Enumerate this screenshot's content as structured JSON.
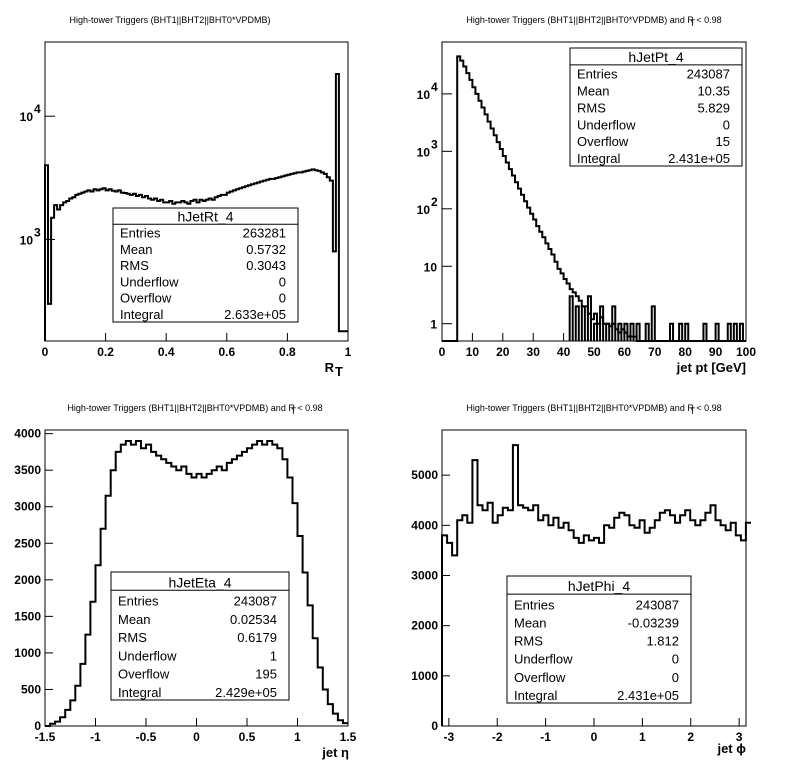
{
  "charts": [
    {
      "id": "rt",
      "title": "High-tower Triggers (BHT1||BHT2||BHT0*VPDMB)",
      "xlabel_main": "R",
      "xlabel_sub": "T",
      "stats": {
        "name": "hJetRt_4",
        "rows": [
          {
            "label": "Entries",
            "value": "263281"
          },
          {
            "label": "Mean",
            "value": "0.5732"
          },
          {
            "label": "RMS",
            "value": "0.3043"
          },
          {
            "label": "Underflow",
            "value": "0"
          },
          {
            "label": "Overflow",
            "value": "0"
          },
          {
            "label": "Integral",
            "value": "2.633e+05"
          }
        ]
      },
      "x_ticks": [
        "0",
        "0.2",
        "0.4",
        "0.6",
        "0.8",
        "1"
      ],
      "y_ticks": [
        {
          "base": "10",
          "exp": "3",
          "value": 1000
        },
        {
          "base": "10",
          "exp": "4",
          "value": 10000
        }
      ]
    },
    {
      "id": "pt",
      "title": "High-tower Triggers (BHT1||BHT2||BHT0*VPDMB) and R  < 0.98",
      "title_sub": "T",
      "xlabel_main": "jet pt [GeV]",
      "stats": {
        "name": "hJetPt_4",
        "rows": [
          {
            "label": "Entries",
            "value": "243087"
          },
          {
            "label": "Mean",
            "value": "10.35"
          },
          {
            "label": "RMS",
            "value": "5.829"
          },
          {
            "label": "Underflow",
            "value": "0"
          },
          {
            "label": "Overflow",
            "value": "15"
          },
          {
            "label": "Integral",
            "value": "2.431e+05"
          }
        ]
      },
      "x_ticks": [
        "0",
        "10",
        "20",
        "30",
        "40",
        "50",
        "60",
        "70",
        "80",
        "90",
        "100"
      ],
      "y_ticks": [
        {
          "base": "1",
          "exp": "",
          "value": 1
        },
        {
          "base": "10",
          "exp": "",
          "value": 10
        },
        {
          "base": "10",
          "exp": "2",
          "value": 100
        },
        {
          "base": "10",
          "exp": "3",
          "value": 1000
        },
        {
          "base": "10",
          "exp": "4",
          "value": 10000
        }
      ]
    },
    {
      "id": "eta",
      "title": "High-tower Triggers (BHT1||BHT2||BHT0*VPDMB) and R  < 0.98",
      "title_sub": "T",
      "xlabel_main": "jet η",
      "stats": {
        "name": "hJetEta_4",
        "rows": [
          {
            "label": "Entries",
            "value": "243087"
          },
          {
            "label": "Mean",
            "value": "0.02534"
          },
          {
            "label": "RMS",
            "value": "0.6179"
          },
          {
            "label": "Underflow",
            "value": "1"
          },
          {
            "label": "Overflow",
            "value": "195"
          },
          {
            "label": "Integral",
            "value": "2.429e+05"
          }
        ]
      },
      "x_ticks": [
        "-1.5",
        "-1",
        "-0.5",
        "0",
        "0.5",
        "1",
        "1.5"
      ],
      "y_ticks": [
        "0",
        "500",
        "1000",
        "1500",
        "2000",
        "2500",
        "3000",
        "3500",
        "4000"
      ]
    },
    {
      "id": "phi",
      "title": "High-tower Triggers (BHT1||BHT2||BHT0*VPDMB) and R  < 0.98",
      "title_sub": "T",
      "xlabel_main": "jet ϕ",
      "stats": {
        "name": "hJetPhi_4",
        "rows": [
          {
            "label": "Entries",
            "value": "243087"
          },
          {
            "label": "Mean",
            "value": "-0.03239"
          },
          {
            "label": "RMS",
            "value": "1.812"
          },
          {
            "label": "Underflow",
            "value": "0"
          },
          {
            "label": "Overflow",
            "value": "0"
          },
          {
            "label": "Integral",
            "value": "2.431e+05"
          }
        ]
      },
      "x_ticks": [
        "-3",
        "-2",
        "-1",
        "0",
        "1",
        "2",
        "3"
      ],
      "y_ticks": [
        "0",
        "1000",
        "2000",
        "3000",
        "4000",
        "5000"
      ]
    }
  ],
  "chart_data": [
    {
      "type": "bar",
      "style": "step-histogram",
      "name": "hJetRt_4",
      "xlim": [
        0,
        1
      ],
      "ylim": [
        150,
        40000
      ],
      "log_y": true,
      "bin_edges_start": 0,
      "bin_width": 0.01,
      "values": [
        4000,
        300,
        1500,
        1900,
        1750,
        1900,
        2000,
        2050,
        2150,
        2200,
        2300,
        2350,
        2400,
        2450,
        2500,
        2450,
        2550,
        2500,
        2550,
        2600,
        2500,
        2550,
        2480,
        2450,
        2500,
        2400,
        2380,
        2350,
        2300,
        2350,
        2250,
        2300,
        2200,
        2250,
        2150,
        2100,
        2150,
        2050,
        2100,
        2000,
        2000,
        2050,
        1950,
        2000,
        2000,
        2050,
        2000,
        1950,
        2050,
        2100,
        2000,
        2100,
        2050,
        2100,
        2150,
        2100,
        2200,
        2250,
        2300,
        2300,
        2400,
        2450,
        2500,
        2550,
        2600,
        2650,
        2700,
        2750,
        2800,
        2850,
        2900,
        2950,
        3000,
        3050,
        3100,
        3100,
        3150,
        3200,
        3250,
        3300,
        3350,
        3400,
        3450,
        3500,
        3500,
        3550,
        3600,
        3650,
        3700,
        3650,
        3600,
        3500,
        3400,
        3200,
        3000,
        800,
        22000,
        180,
        180,
        180
      ]
    },
    {
      "type": "bar",
      "style": "step-histogram",
      "name": "hJetPt_4",
      "xlim": [
        0,
        100
      ],
      "ylim": [
        0.5,
        80000
      ],
      "log_y": true,
      "bin_edges_start": 0,
      "bin_width": 1,
      "values": [
        0,
        0,
        0,
        0,
        0,
        45000,
        38000,
        30000,
        23000,
        17500,
        13000,
        10000,
        7600,
        5800,
        4400,
        3300,
        2500,
        1900,
        1450,
        1100,
        830,
        640,
        490,
        380,
        290,
        225,
        175,
        135,
        105,
        82,
        65,
        50,
        40,
        32,
        25,
        20,
        16,
        12,
        9,
        7.5,
        6,
        5,
        4,
        3.5,
        3,
        2.5,
        2,
        2,
        1.5,
        1.2,
        1.5,
        1,
        1.3,
        1,
        1,
        0.9,
        1,
        0.8,
        0.7,
        0.8,
        0.7,
        0.6,
        0.6,
        0.6,
        0.5,
        0.5,
        0.5,
        0.5,
        0.5,
        0.5,
        0.5,
        0.5,
        0.5,
        0.5,
        0.5,
        0.5,
        0.5,
        0.5,
        0.5,
        0.5,
        0.5,
        0.5,
        0.5,
        0.5,
        0.5,
        0.5,
        0.5,
        0.5,
        0.5,
        0.5,
        0.5,
        0.5,
        0.5,
        0.5,
        0.5,
        0.5,
        0.5,
        0.5,
        0.5,
        0.5
      ],
      "sparse_bins": [
        {
          "x": 42,
          "y": 3
        },
        {
          "x": 44,
          "y": 2
        },
        {
          "x": 46,
          "y": 2
        },
        {
          "x": 48,
          "y": 3
        },
        {
          "x": 50,
          "y": 1
        },
        {
          "x": 52,
          "y": 2
        },
        {
          "x": 54,
          "y": 1
        },
        {
          "x": 56,
          "y": 2
        },
        {
          "x": 58,
          "y": 1
        },
        {
          "x": 60,
          "y": 1
        },
        {
          "x": 62,
          "y": 1
        },
        {
          "x": 64,
          "y": 1
        },
        {
          "x": 67,
          "y": 1
        },
        {
          "x": 69,
          "y": 2
        },
        {
          "x": 75,
          "y": 1
        },
        {
          "x": 78,
          "y": 1
        },
        {
          "x": 80,
          "y": 1
        },
        {
          "x": 86,
          "y": 1
        },
        {
          "x": 90,
          "y": 1
        },
        {
          "x": 94,
          "y": 1
        },
        {
          "x": 96,
          "y": 1
        },
        {
          "x": 98,
          "y": 1
        }
      ]
    },
    {
      "type": "bar",
      "style": "step-histogram",
      "name": "hJetEta_4",
      "xlim": [
        -1.5,
        1.5
      ],
      "ylim": [
        0,
        4050
      ],
      "log_y": false,
      "bin_edges_start": -1.5,
      "bin_width": 0.05,
      "values": [
        0,
        30,
        60,
        120,
        220,
        350,
        550,
        850,
        1250,
        1700,
        2200,
        2700,
        3150,
        3500,
        3750,
        3850,
        3900,
        3850,
        3900,
        3800,
        3850,
        3750,
        3700,
        3650,
        3600,
        3550,
        3500,
        3550,
        3450,
        3400,
        3450,
        3400,
        3450,
        3500,
        3550,
        3500,
        3600,
        3650,
        3700,
        3750,
        3800,
        3850,
        3900,
        3850,
        3900,
        3850,
        3800,
        3650,
        3400,
        3050,
        2600,
        2100,
        1650,
        1200,
        800,
        500,
        300,
        170,
        80,
        40
      ]
    },
    {
      "type": "bar",
      "style": "step-histogram",
      "name": "hJetPhi_4",
      "xlim": [
        -3.1416,
        3.1416
      ],
      "ylim": [
        0,
        5900
      ],
      "log_y": false,
      "bin_edges_start": -3.1416,
      "bin_width": 0.1047,
      "values": [
        3800,
        3650,
        3400,
        4100,
        4200,
        4050,
        5300,
        4400,
        4300,
        4450,
        4050,
        4200,
        4350,
        4300,
        5600,
        4400,
        4350,
        4300,
        4400,
        4100,
        4200,
        4000,
        4150,
        3950,
        4050,
        3900,
        3750,
        3650,
        3800,
        3700,
        3750,
        3650,
        4000,
        3950,
        4150,
        4250,
        4200,
        4000,
        3950,
        4100,
        3850,
        3950,
        4100,
        4250,
        4300,
        4200,
        4050,
        4200,
        4300,
        4100,
        4000,
        4100,
        4250,
        4400,
        4100,
        4000,
        3900,
        4050,
        3800,
        3700,
        4050
      ]
    }
  ]
}
